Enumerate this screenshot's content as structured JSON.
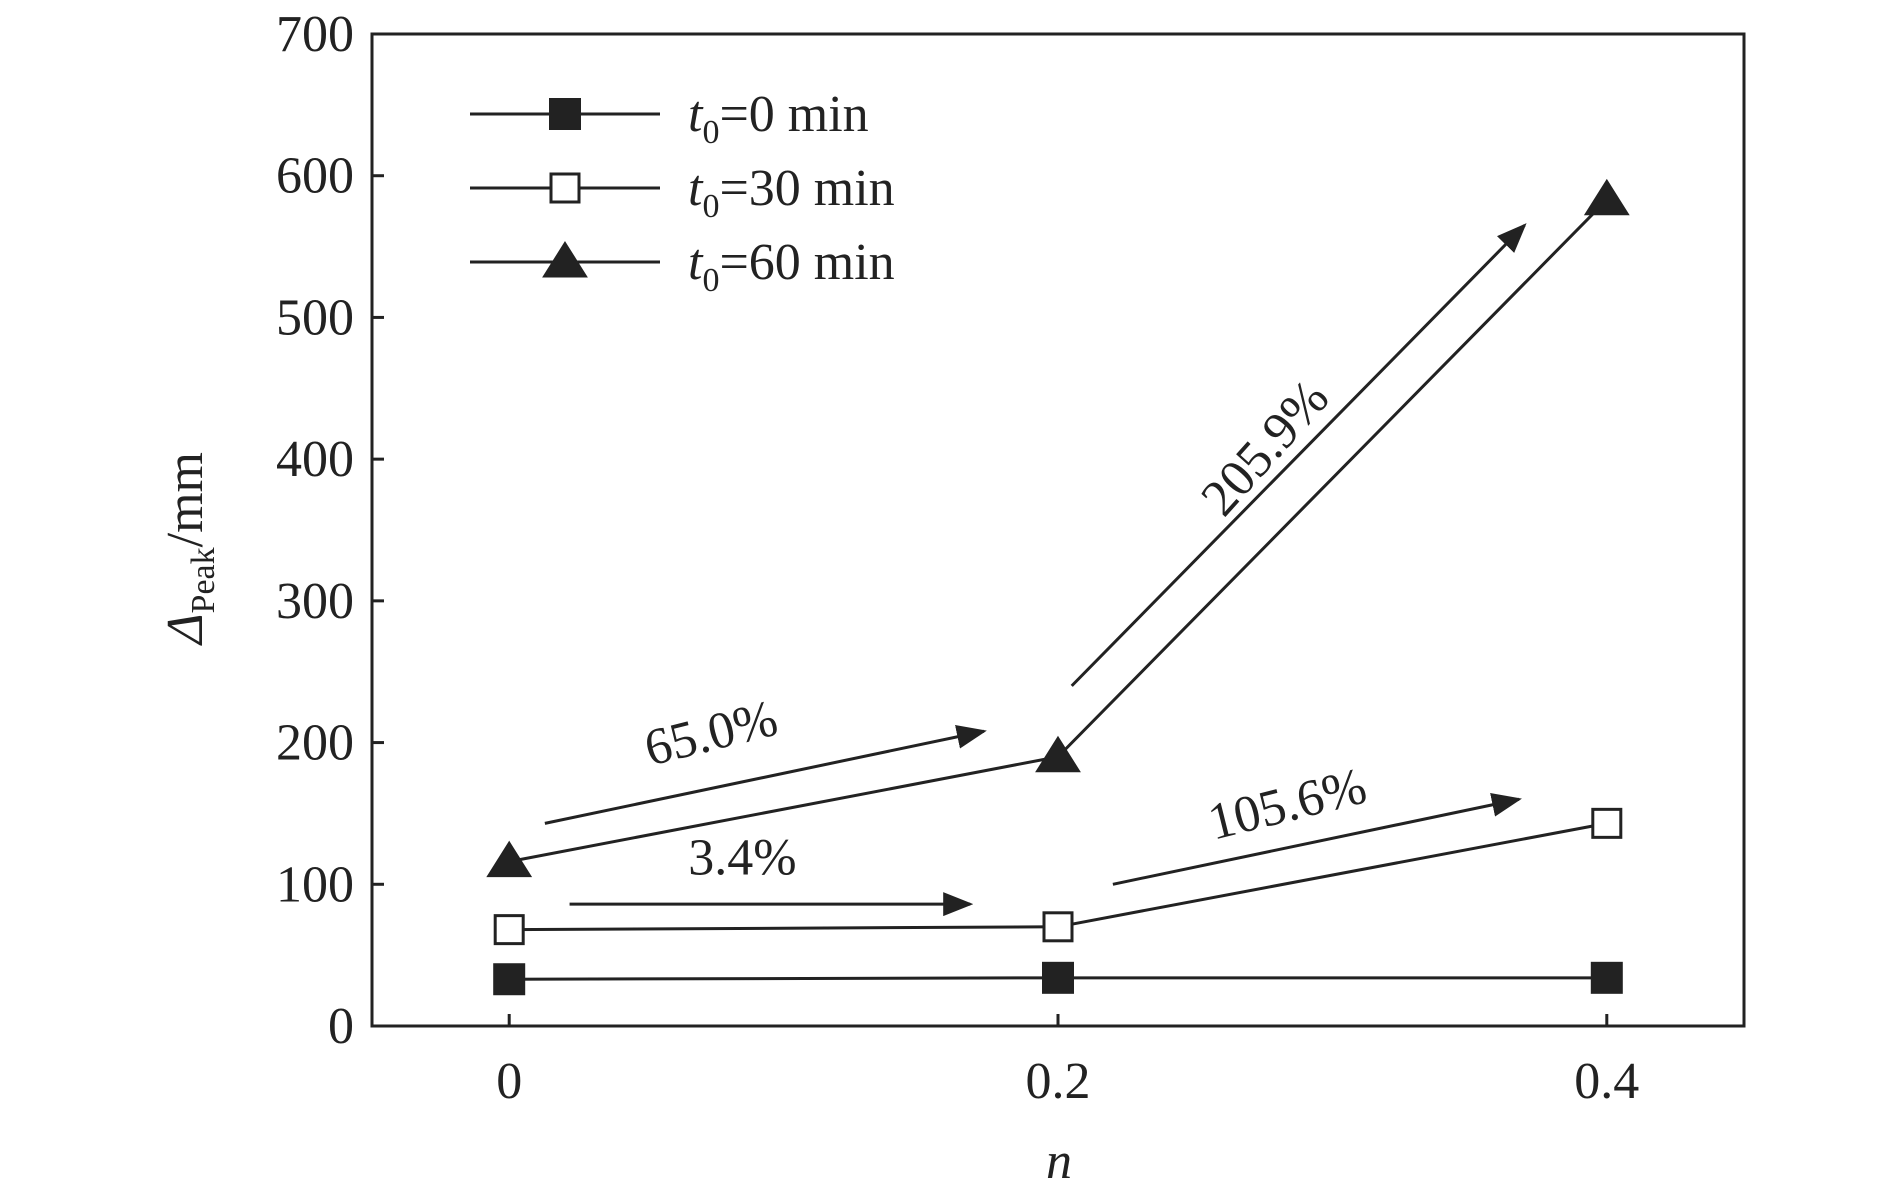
{
  "chart_data": {
    "type": "line",
    "x": [
      0,
      0.2,
      0.4
    ],
    "x_tick_labels": [
      "0",
      "0.2",
      "0.4"
    ],
    "xlim": [
      -0.05,
      0.45
    ],
    "y_ticks": [
      0,
      100,
      200,
      300,
      400,
      500,
      600,
      700
    ],
    "ylim": [
      0,
      700
    ],
    "xlabel": "n",
    "ylabel": {
      "main": "Δ",
      "sub": "Peak",
      "unit": "/mm"
    },
    "grid": false,
    "legend_position": "top-left",
    "series": [
      {
        "name_main": "t",
        "name_sub": "0",
        "name_rest": "=0 min",
        "marker": "square-filled",
        "values": [
          33,
          34,
          34
        ]
      },
      {
        "name_main": "t",
        "name_sub": "0",
        "name_rest": "=30 min",
        "marker": "square-open",
        "values": [
          68,
          70,
          143
        ]
      },
      {
        "name_main": "t",
        "name_sub": "0",
        "name_rest": "=60 min",
        "marker": "triangle-filled",
        "values": [
          116,
          190,
          583
        ]
      }
    ],
    "annotations": [
      {
        "text": "65.0%",
        "from": [
          0.013,
          143
        ],
        "to": [
          0.173,
          208
        ],
        "label_at": [
          0.075,
          195
        ],
        "angle": -14
      },
      {
        "text": "3.4%",
        "from": [
          0.022,
          86
        ],
        "to": [
          0.168,
          86
        ],
        "label_at": [
          0.085,
          107
        ],
        "angle": 0
      },
      {
        "text": "105.6%",
        "from": [
          0.22,
          100
        ],
        "to": [
          0.368,
          160
        ],
        "label_at": [
          0.285,
          145
        ],
        "angle": -14
      },
      {
        "text": "205.9%",
        "from": [
          0.205,
          240
        ],
        "to": [
          0.37,
          565
        ],
        "label_at": [
          0.28,
          400
        ],
        "angle": -48
      }
    ],
    "colors": {
      "line": "#222222",
      "marker": "#222222",
      "open_fill": "#ffffff"
    }
  }
}
